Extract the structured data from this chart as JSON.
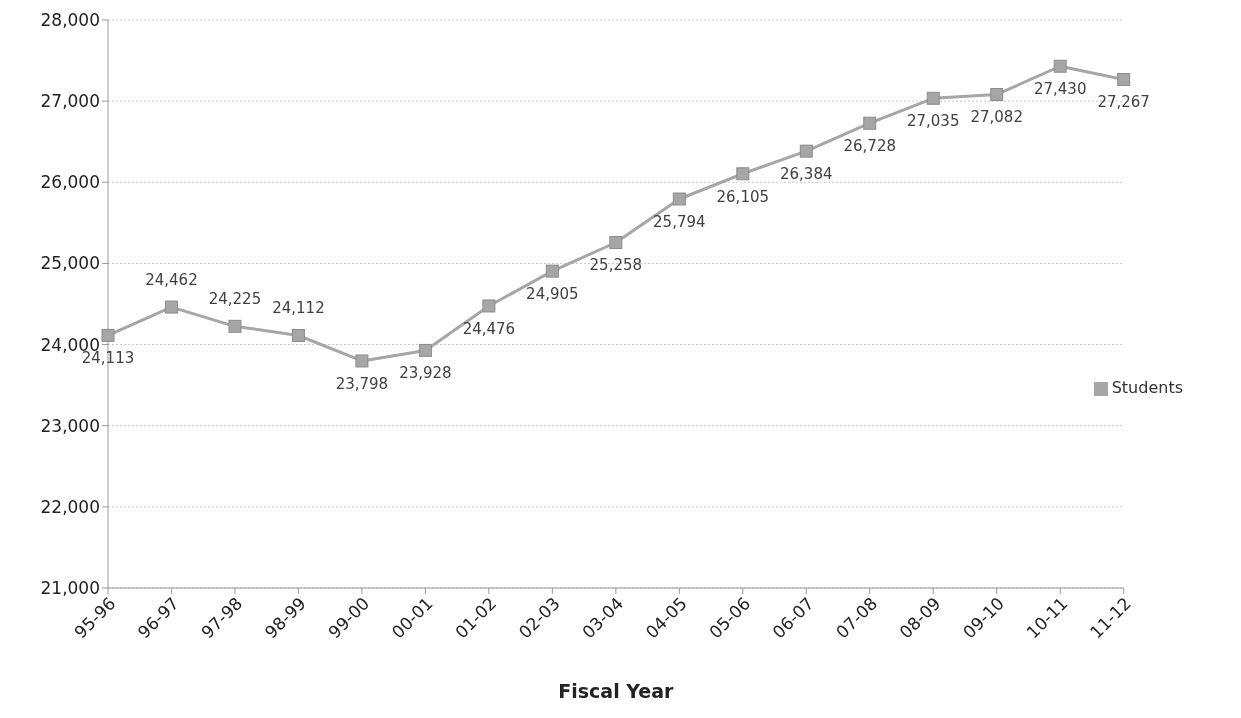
{
  "chart_data": {
    "type": "line",
    "xlabel": "Fiscal Year",
    "categories": [
      "95-96",
      "96-97",
      "97-98",
      "98-99",
      "99-00",
      "00-01",
      "01-02",
      "02-03",
      "03-04",
      "04-05",
      "05-06",
      "06-07",
      "07-08",
      "08-09",
      "09-10",
      "10-11",
      "11-12"
    ],
    "series": [
      {
        "name": "Students",
        "color": "#a6a6a6",
        "values": [
          24113,
          24462,
          24225,
          24112,
          23798,
          23928,
          24476,
          24905,
          25258,
          25794,
          26105,
          26384,
          26728,
          27035,
          27082,
          27430,
          27267
        ],
        "value_labels": [
          "24,113",
          "24,462",
          "24,225",
          "24,112",
          "23,798",
          "23,928",
          "24,476",
          "24,905",
          "25,258",
          "25,794",
          "26,105",
          "26,384",
          "26,728",
          "27,035",
          "27,082",
          "27,430",
          "27,267"
        ]
      }
    ],
    "ylim": [
      21000,
      28000
    ],
    "yticks": [
      {
        "value": 21000,
        "label": "21,000"
      },
      {
        "value": 22000,
        "label": "22,000"
      },
      {
        "value": 23000,
        "label": "23,000"
      },
      {
        "value": 24000,
        "label": "24,000"
      },
      {
        "value": 25000,
        "label": "25,000"
      },
      {
        "value": 26000,
        "label": "26,000"
      },
      {
        "value": 27000,
        "label": "27,000"
      },
      {
        "value": 28000,
        "label": "28,000"
      }
    ],
    "grid": "y",
    "legend": "right",
    "marker": "square",
    "line_style": "solid"
  }
}
